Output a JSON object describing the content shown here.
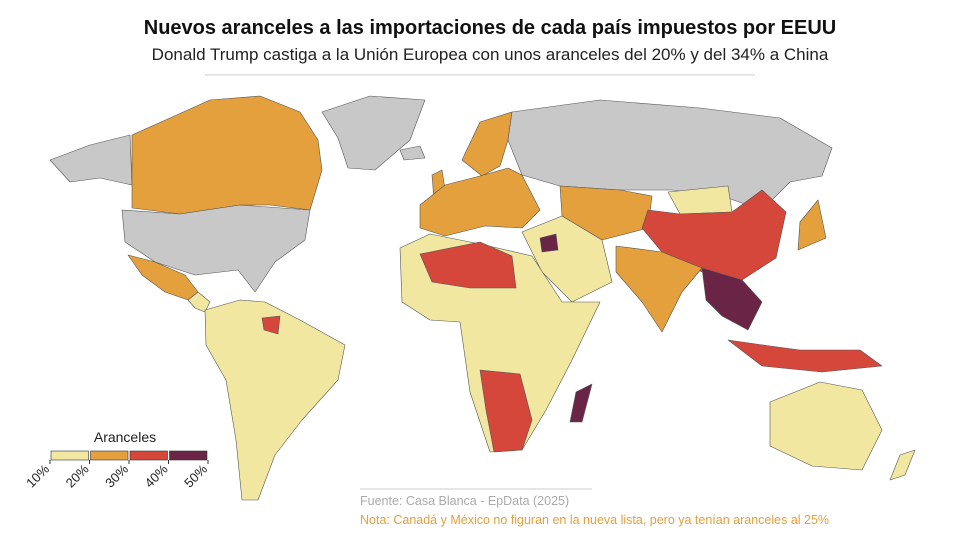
{
  "title": "Nuevos aranceles a las importaciones de cada país impuestos por EEUU",
  "subtitle": "Donald Trump castiga a la Unión Europea con unos aranceles del 20% y del 34% a China",
  "legend": {
    "title": "Aranceles",
    "ticks": [
      {
        "value": 10,
        "label": "10%"
      },
      {
        "value": 20,
        "label": "20%"
      },
      {
        "value": 30,
        "label": "30%"
      },
      {
        "value": 40,
        "label": "40%"
      },
      {
        "value": 50,
        "label": "50%"
      }
    ],
    "colors": [
      "#f1e7a1",
      "#e3a03c",
      "#d5473b",
      "#6a2446"
    ]
  },
  "source": "Fuente: Casa Blanca - EpData (2025)",
  "note": "Nota: Canadá y México no figuran en la nueva lista, pero ya tenían aranceles al 25%"
}
